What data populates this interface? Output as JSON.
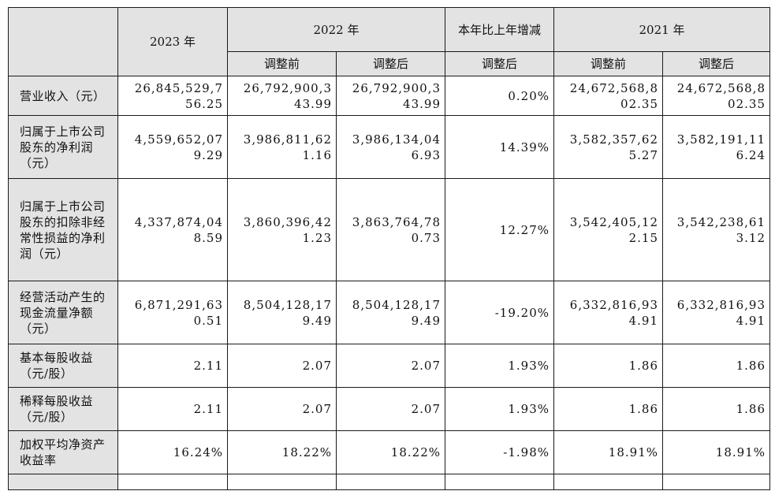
{
  "header": {
    "year_2023": "2023 年",
    "year_2022": "2022 年",
    "change": "本年比上年增减",
    "year_2021": "2021 年",
    "sub_2022_before": "调整前",
    "sub_2022_after": "调整后",
    "sub_change_after": "调整后",
    "sub_2021_before": "调整前",
    "sub_2021_after": "调整后"
  },
  "rows": [
    {
      "label": "营业收入（元）",
      "y2023": [
        "26,845,529,7",
        "56.25"
      ],
      "y2022_before": [
        "26,792,900,3",
        "43.99"
      ],
      "y2022_after": [
        "26,792,900,3",
        "43.99"
      ],
      "change": [
        "0.20%"
      ],
      "y2021_before": [
        "24,672,568,8",
        "02.35"
      ],
      "y2021_after": [
        "24,672,568,8",
        "02.35"
      ]
    },
    {
      "label": "归属于上市公司股东的净利润（元）",
      "y2023": [
        "4,559,652,07",
        "9.29"
      ],
      "y2022_before": [
        "3,986,811,62",
        "1.16"
      ],
      "y2022_after": [
        "3,986,134,04",
        "6.93"
      ],
      "change": [
        "14.39%"
      ],
      "y2021_before": [
        "3,582,357,62",
        "5.27"
      ],
      "y2021_after": [
        "3,582,191,11",
        "6.24"
      ]
    },
    {
      "label": "归属于上市公司股东的扣除非经常性损益的净利润（元）",
      "y2023": [
        "4,337,874,04",
        "8.59"
      ],
      "y2022_before": [
        "3,860,396,42",
        "1.23"
      ],
      "y2022_after": [
        "3,863,764,78",
        "0.73"
      ],
      "change": [
        "12.27%"
      ],
      "y2021_before": [
        "3,542,405,12",
        "2.15"
      ],
      "y2021_after": [
        "3,542,238,61",
        "3.12"
      ]
    },
    {
      "label": "经营活动产生的现金流量净额（元）",
      "y2023": [
        "6,871,291,63",
        "0.51"
      ],
      "y2022_before": [
        "8,504,128,17",
        "9.49"
      ],
      "y2022_after": [
        "8,504,128,17",
        "9.49"
      ],
      "change": [
        "-19.20%"
      ],
      "y2021_before": [
        "6,332,816,93",
        "4.91"
      ],
      "y2021_after": [
        "6,332,816,93",
        "4.91"
      ]
    },
    {
      "label": "基本每股收益（元/股）",
      "y2023": [
        "2.11"
      ],
      "y2022_before": [
        "2.07"
      ],
      "y2022_after": [
        "2.07"
      ],
      "change": [
        "1.93%"
      ],
      "y2021_before": [
        "1.86"
      ],
      "y2021_after": [
        "1.86"
      ]
    },
    {
      "label": "稀释每股收益（元/股）",
      "y2023": [
        "2.11"
      ],
      "y2022_before": [
        "2.07"
      ],
      "y2022_after": [
        "2.07"
      ],
      "change": [
        "1.93%"
      ],
      "y2021_before": [
        "1.86"
      ],
      "y2021_after": [
        "1.86"
      ]
    },
    {
      "label": "加权平均净资产收益率",
      "y2023": [
        "16.24%"
      ],
      "y2022_before": [
        "18.22%"
      ],
      "y2022_after": [
        "18.22%"
      ],
      "change": [
        "-1.98%"
      ],
      "y2021_before": [
        "18.91%"
      ],
      "y2021_after": [
        "18.91%"
      ]
    }
  ]
}
